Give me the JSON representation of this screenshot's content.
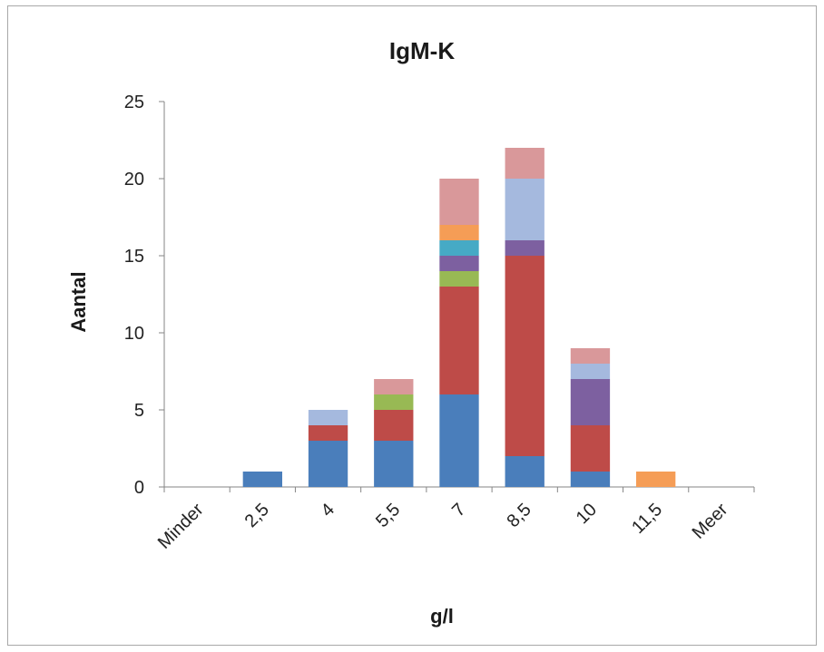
{
  "chart_data": {
    "type": "bar",
    "stacked": true,
    "title": "IgM-K",
    "xlabel": "g/l",
    "ylabel": "Aantal",
    "categories": [
      "Minder",
      "2,5",
      "4",
      "5,5",
      "7",
      "8,5",
      "10",
      "11,5",
      "Meer"
    ],
    "ylim": [
      0,
      25
    ],
    "yticks": [
      0,
      5,
      10,
      15,
      20,
      25
    ],
    "grid": false,
    "legend": "none",
    "series": [
      {
        "color": "#4a7ebb",
        "values": [
          0,
          1,
          3,
          3,
          6,
          2,
          1,
          0,
          0
        ]
      },
      {
        "color": "#be4b48",
        "values": [
          0,
          0,
          1,
          2,
          7,
          13,
          3,
          0,
          0
        ]
      },
      {
        "color": "#98b954",
        "values": [
          0,
          0,
          0,
          1,
          1,
          0,
          0,
          0,
          0
        ]
      },
      {
        "color": "#7d60a0",
        "values": [
          0,
          0,
          0,
          0,
          1,
          1,
          3,
          0,
          0
        ]
      },
      {
        "color": "#46aac5",
        "values": [
          0,
          0,
          0,
          0,
          1,
          0,
          0,
          0,
          0
        ]
      },
      {
        "color": "#f59d56",
        "values": [
          0,
          0,
          0,
          0,
          1,
          0,
          0,
          1,
          0
        ]
      },
      {
        "color": "#a5b9de",
        "values": [
          0,
          0,
          1,
          0,
          0,
          4,
          1,
          0,
          0
        ]
      },
      {
        "color": "#d9989a",
        "values": [
          0,
          0,
          0,
          1,
          3,
          2,
          1,
          0,
          0
        ]
      }
    ]
  }
}
